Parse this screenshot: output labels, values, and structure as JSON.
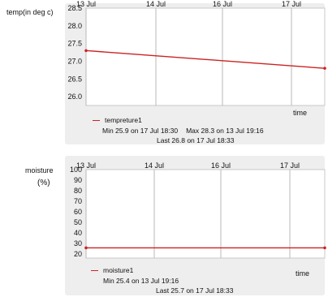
{
  "colors": {
    "series": "#cc2222",
    "panel": "#eeeeee",
    "plot_bg": "#ffffff",
    "grid": "#b8b8b8"
  },
  "chart_data": [
    {
      "type": "line",
      "ylabel": "temp(in deg c)",
      "xlabel": "time",
      "x_ticks": [
        "13 Jul",
        "14 Jul",
        "16 Jul",
        "17 Jul"
      ],
      "y_ticks": [
        "28.5",
        "28.0",
        "27.5",
        "27.0",
        "26.5",
        "26.0"
      ],
      "ylim": [
        25.75,
        28.5
      ],
      "grid": true,
      "legend": "bottom-left",
      "series": [
        {
          "name": "tempreture1",
          "points": [
            [
              "13 Jul",
              27.3
            ],
            [
              "17 Jul 18:33",
              26.8
            ]
          ]
        }
      ],
      "stats": {
        "min": "Min  25.9 on 17 Jul 18:30",
        "max": "Max  28.3 on 13 Jul 19:16",
        "last": "Last  26.8 on 17 Jul 18:33"
      }
    },
    {
      "type": "line",
      "ylabel": "moisture",
      "ylabel_unit": "(%)",
      "xlabel": "time",
      "x_ticks": [
        "13 Jul",
        "14 Jul",
        "16 Jul",
        "17 Jul"
      ],
      "y_ticks": [
        "100",
        "90",
        "80",
        "70",
        "60",
        "50",
        "40",
        "30",
        "20"
      ],
      "ylim": [
        16,
        100
      ],
      "grid": true,
      "legend": "bottom-left",
      "series": [
        {
          "name": "moisture1",
          "points": [
            [
              "13 Jul",
              25.7
            ],
            [
              "17 Jul 18:33",
              25.7
            ]
          ]
        }
      ],
      "stats": {
        "min": "Min  25.4 on 13 Jul 19:16",
        "last": "Last  25.7 on 17 Jul 18:33"
      }
    }
  ]
}
